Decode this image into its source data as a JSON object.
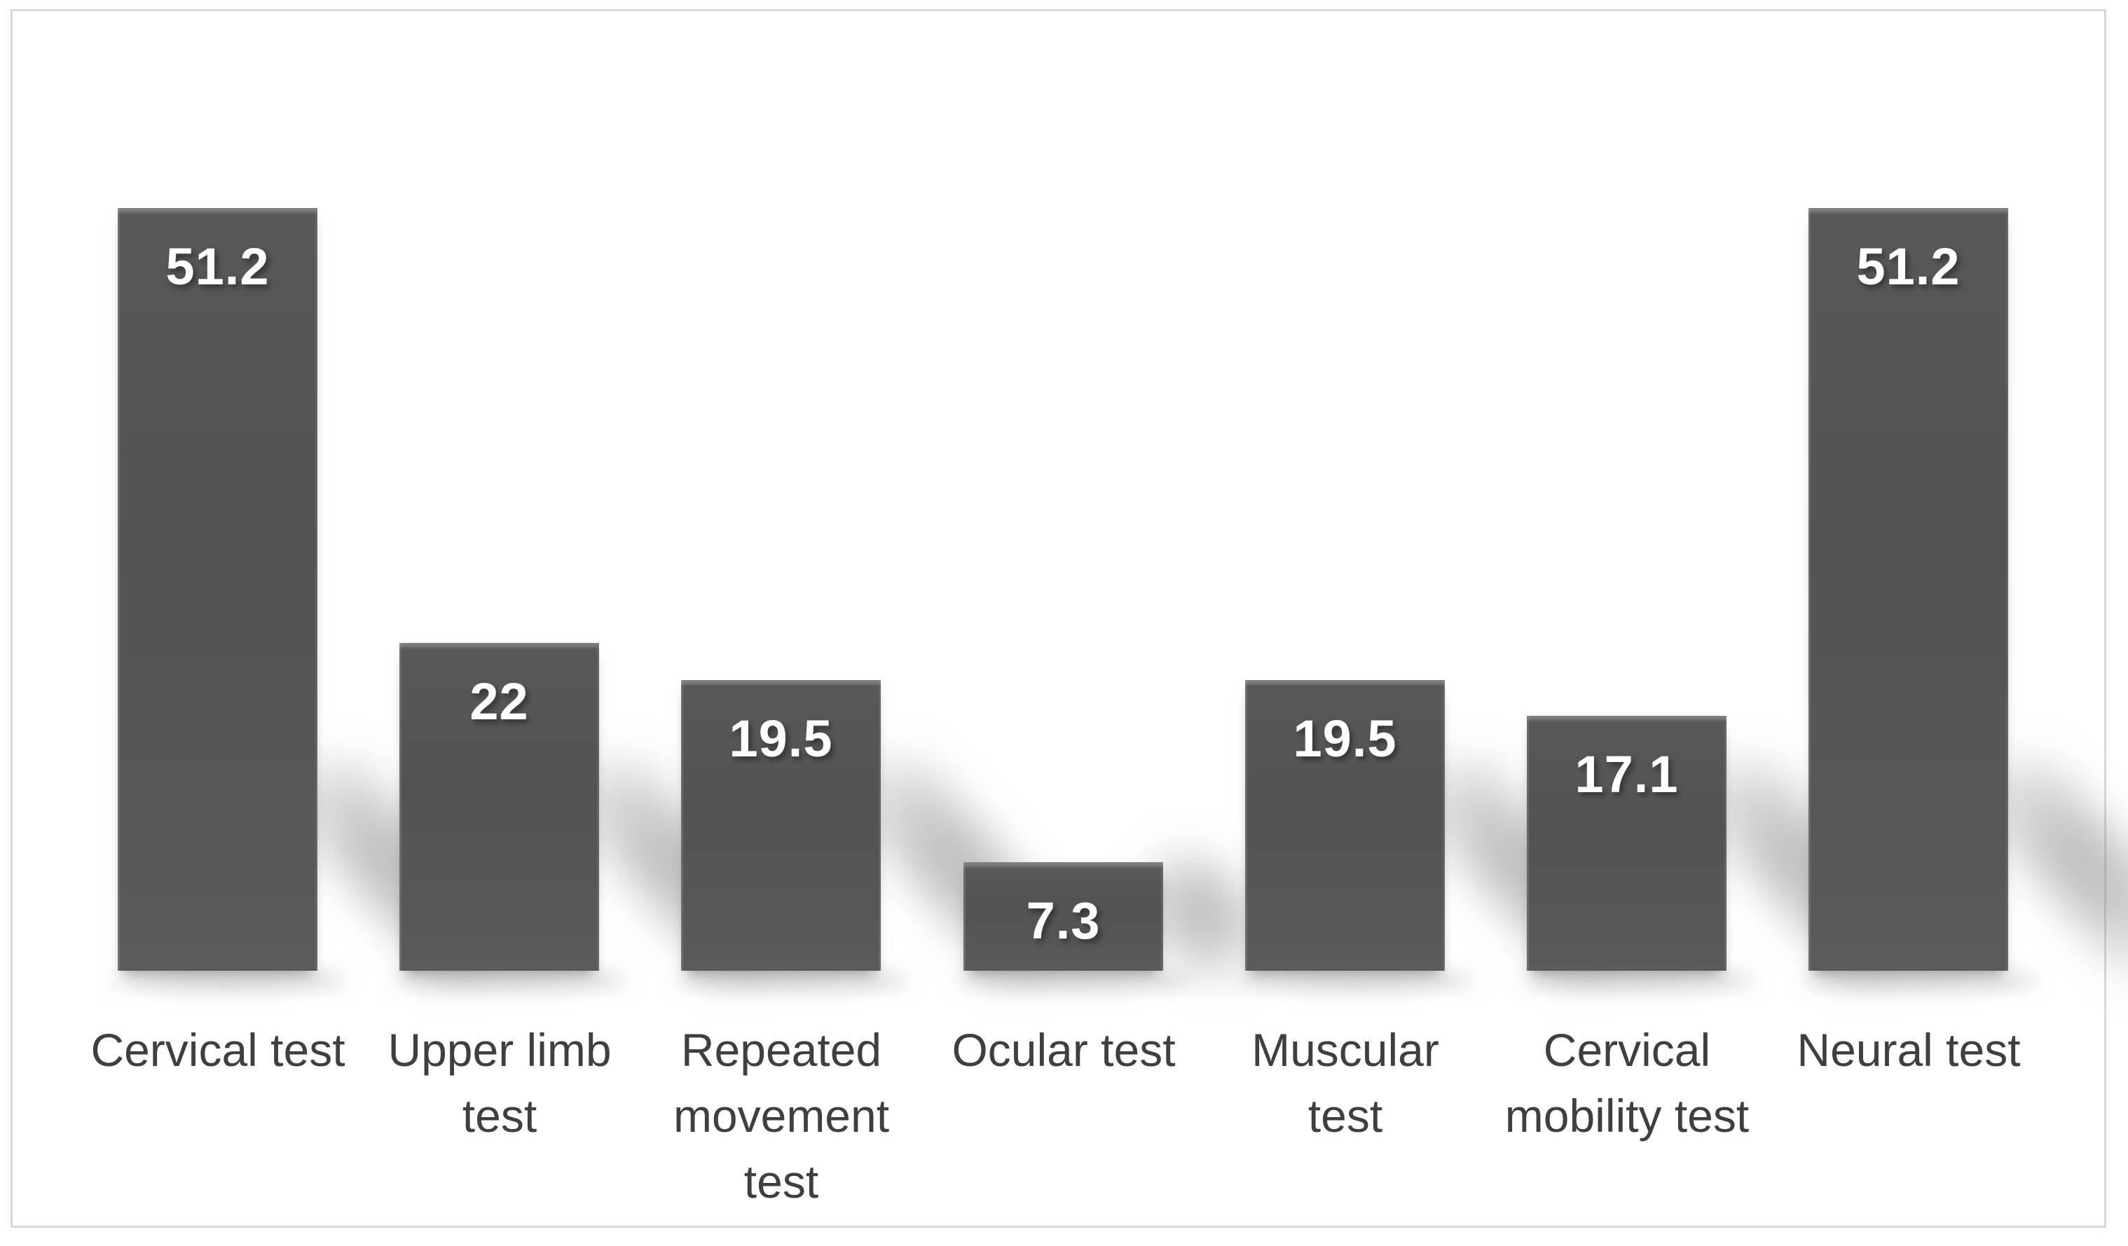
{
  "chart_data": {
    "type": "bar",
    "title": "",
    "xlabel": "",
    "ylabel": "",
    "categories": [
      "Cervical test",
      "Upper limb test",
      "Repeated movement test",
      "Ocular test",
      "Muscular test",
      "Cervical mobility test",
      "Neural test"
    ],
    "values": [
      51.2,
      22,
      19.5,
      7.3,
      19.5,
      17.1,
      51.2
    ],
    "data_labels": [
      "51.2",
      "22",
      "19.5",
      "7.3",
      "19.5",
      "17.1",
      "51.2"
    ],
    "category_label_lines": [
      "Cervical test",
      "Upper limb\ntest",
      "Repeated\nmovement\ntest",
      "Ocular test",
      "Muscular\ntest",
      "Cervical\nmobility test",
      "Neural test"
    ],
    "ylim": [
      0,
      55
    ],
    "grid": false,
    "legend": false,
    "data_label_position": "inside-end",
    "bar_color": "#565656",
    "bar_top_rim_color": "#7d7d7d",
    "data_label_color": "#ffffff",
    "axis_text_color": "#3f3f3f",
    "frame_border_color": "#d8d8d8",
    "background_color": "#ffffff",
    "shadow_style": "perspective-lower-right"
  }
}
